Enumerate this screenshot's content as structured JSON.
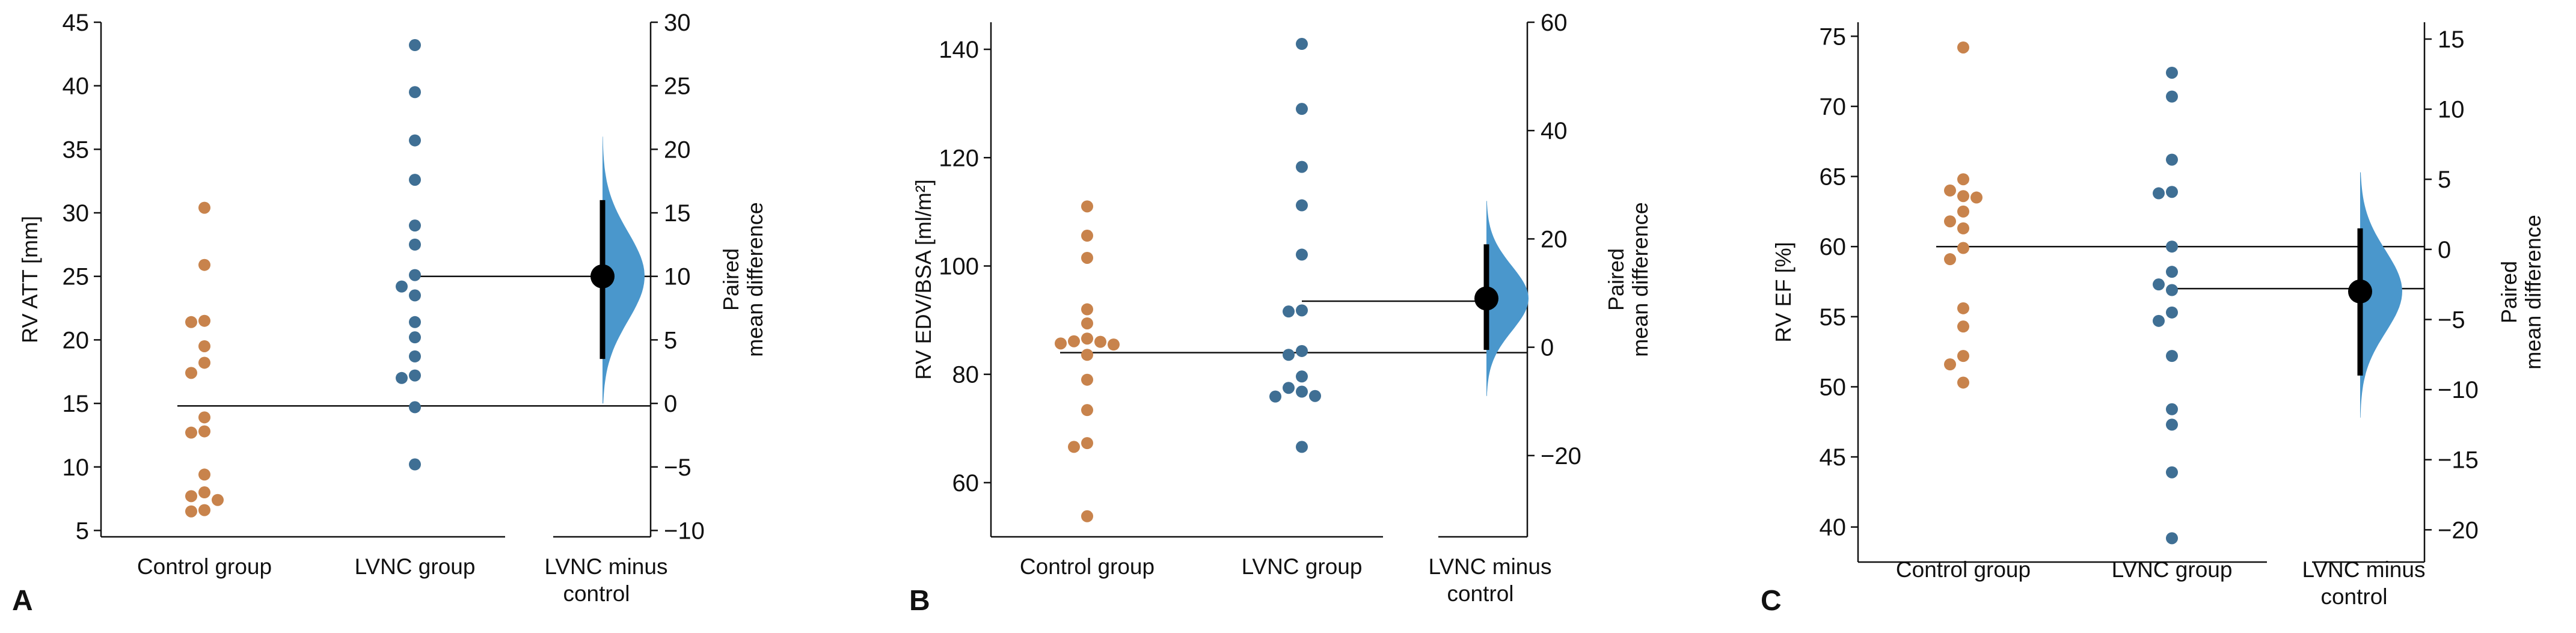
{
  "colors": {
    "control": "#C8834C",
    "lvnc": "#3F6F94",
    "distribution": "#4A97CC",
    "axis": "#111111",
    "estimate": "#000000"
  },
  "chart_data": [
    {
      "type": "scatter",
      "panel_letter": "A",
      "ylabel": "RV ATT [mm]",
      "right_ylabel": "Paired mean difference",
      "categories": [
        "Control group",
        "LVNC group",
        "LVNC minus control"
      ],
      "ylim": [
        4.5,
        45
      ],
      "yticks": [
        5,
        10,
        15,
        20,
        25,
        30,
        35,
        40,
        45
      ],
      "right_ylim": [
        -10.5,
        30
      ],
      "right_yticks": [
        -10,
        -5,
        0,
        5,
        10,
        15,
        20,
        25,
        30
      ],
      "series": [
        {
          "name": "Control group",
          "values": [
            30.4,
            25.9,
            21.5,
            21.4,
            19.5,
            18.2,
            17.4,
            13.9,
            12.8,
            12.7,
            9.4,
            8.0,
            7.7,
            7.4,
            6.6,
            6.5
          ]
        },
        {
          "name": "LVNC group",
          "values": [
            43.2,
            39.5,
            35.7,
            32.6,
            29.0,
            27.5,
            25.1,
            24.2,
            23.5,
            21.4,
            20.2,
            18.7,
            17.2,
            17.0,
            14.7,
            10.2
          ]
        }
      ],
      "control_mean": 14.8,
      "lvnc_mean": 25.0,
      "paired_mean_difference": 10.0,
      "ci": [
        3.5,
        16.0
      ],
      "distribution_range": [
        0.0,
        21.0
      ]
    },
    {
      "type": "scatter",
      "panel_letter": "B",
      "ylabel": "RV EDV/BSA [ml/m²]",
      "right_ylabel": "Paired mean difference",
      "categories": [
        "Control group",
        "LVNC group",
        "LVNC minus control"
      ],
      "ylim": [
        50,
        145
      ],
      "yticks": [
        60,
        80,
        100,
        120,
        140
      ],
      "right_ylim": [
        -35,
        60
      ],
      "right_yticks": [
        -20,
        0,
        20,
        40,
        60
      ],
      "series": [
        {
          "name": "Control group",
          "values": [
            111.0,
            105.6,
            101.5,
            92.0,
            89.4,
            86.6,
            86.1,
            86.0,
            85.7,
            85.5,
            83.6,
            79.0,
            73.4,
            67.3,
            66.6,
            53.8
          ]
        },
        {
          "name": "LVNC group",
          "values": [
            141.0,
            129.0,
            118.3,
            111.2,
            102.1,
            91.8,
            91.6,
            84.3,
            83.6,
            79.6,
            77.5,
            76.8,
            76.0,
            75.9,
            66.6
          ]
        },
        {
          "name": "",
          "values": []
        }
      ],
      "control_mean": 84.0,
      "lvnc_mean": 93.5,
      "paired_mean_difference": 9.0,
      "ci": [
        -0.5,
        19.0
      ],
      "distribution_range": [
        -9.0,
        27.0
      ]
    },
    {
      "type": "scatter",
      "panel_letter": "C",
      "ylabel": "RV EF [%]",
      "right_ylabel": "Paired mean difference",
      "categories": [
        "Control group",
        "LVNC group",
        "LVNC minus control"
      ],
      "ylim": [
        37.5,
        76
      ],
      "yticks": [
        40,
        45,
        50,
        55,
        60,
        65,
        70,
        75
      ],
      "right_ylim": [
        -22.3,
        16.2
      ],
      "right_yticks": [
        -20,
        -15,
        -10,
        -5,
        0,
        5,
        10,
        15
      ],
      "series": [
        {
          "name": "Control group",
          "values": [
            74.2,
            64.8,
            64.0,
            63.6,
            63.5,
            62.5,
            61.8,
            61.3,
            59.9,
            59.1,
            55.6,
            54.3,
            52.2,
            51.6,
            50.3
          ]
        },
        {
          "name": "LVNC group",
          "values": [
            72.4,
            70.7,
            66.2,
            63.9,
            63.8,
            60.0,
            58.2,
            57.3,
            56.9,
            55.3,
            54.7,
            52.2,
            48.4,
            47.3,
            43.9,
            39.2
          ]
        }
      ],
      "control_mean": 60.0,
      "lvnc_mean": 57.0,
      "paired_mean_difference": -3.0,
      "ci": [
        -9.0,
        1.5
      ],
      "distribution_range": [
        -12.0,
        5.5
      ]
    }
  ]
}
